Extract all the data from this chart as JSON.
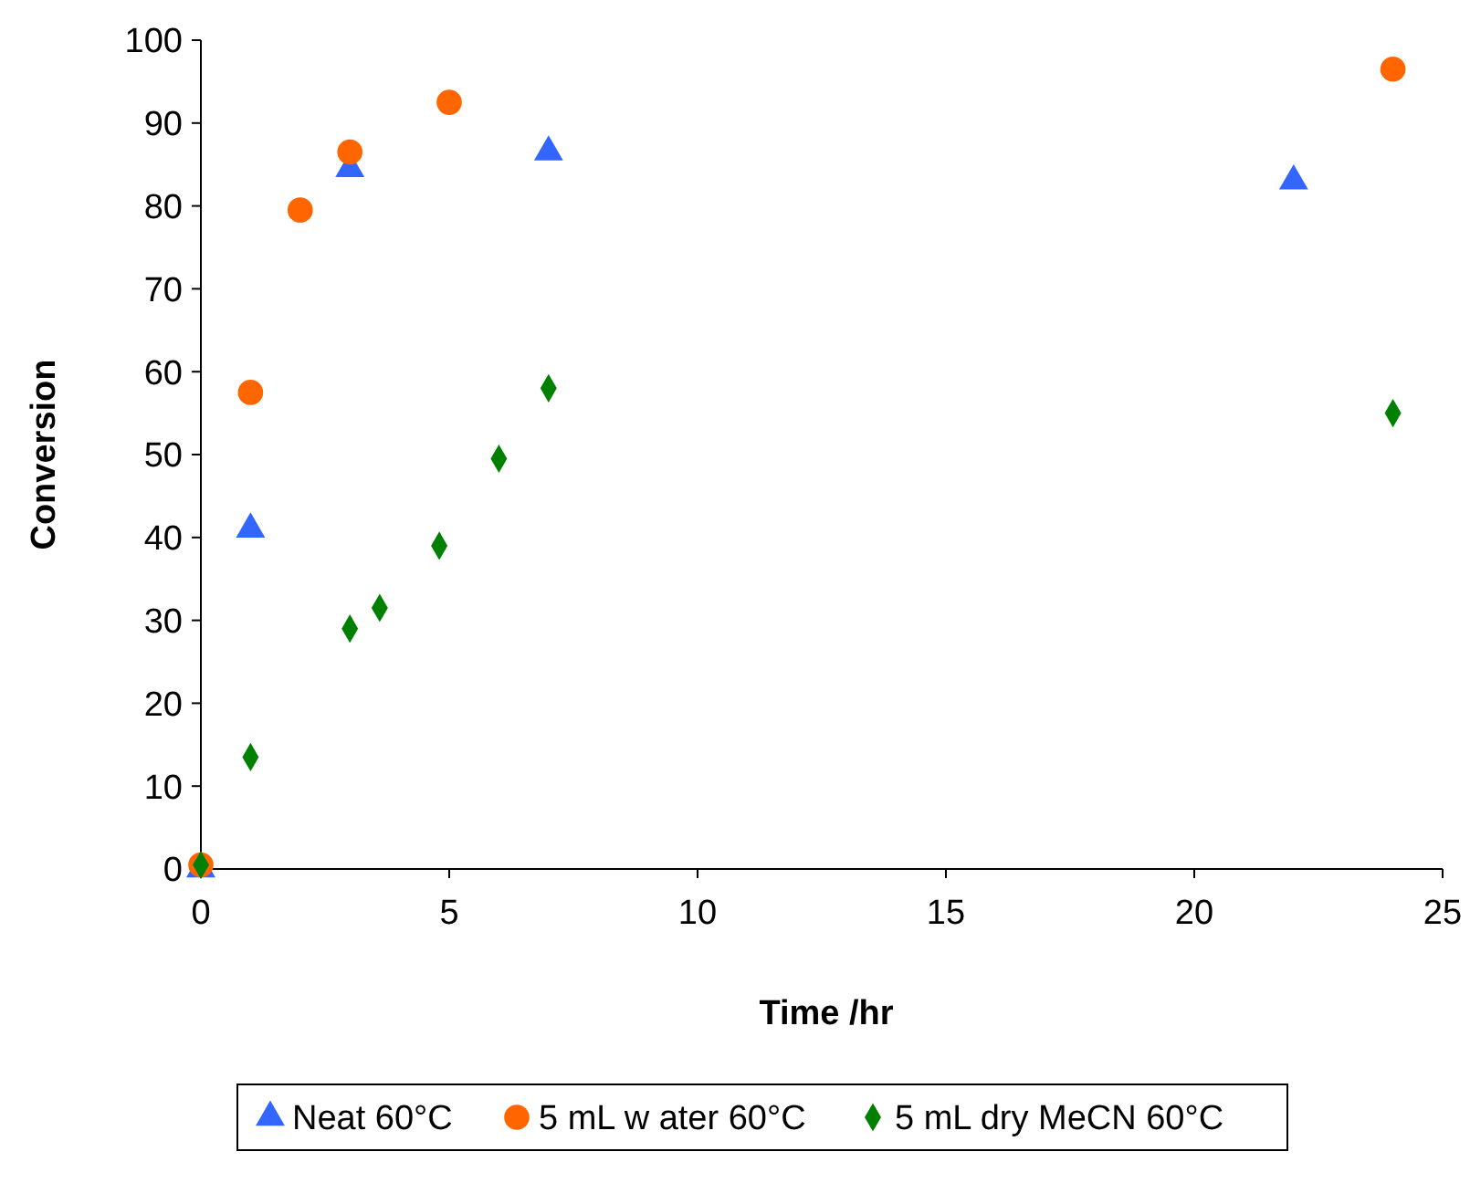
{
  "chart_data": {
    "type": "scatter",
    "xlabel": "Time /hr",
    "ylabel": "Conversion",
    "xlim": [
      0,
      25
    ],
    "ylim": [
      0,
      100
    ],
    "xticks": [
      0,
      5,
      10,
      15,
      20,
      25
    ],
    "yticks": [
      0,
      10,
      20,
      30,
      40,
      50,
      60,
      70,
      80,
      90,
      100
    ],
    "grid": false,
    "legend": "bottom",
    "series": [
      {
        "name": "Neat 60°C",
        "color": "#3366ff",
        "marker": "triangle",
        "x": [
          0,
          1,
          3,
          7,
          22
        ],
        "values": [
          0,
          41,
          84.5,
          86.5,
          83
        ]
      },
      {
        "name": "5 mL w ater 60°C",
        "color": "#ff6600",
        "marker": "circle",
        "x": [
          0,
          1,
          2,
          3,
          5,
          24
        ],
        "values": [
          0.5,
          57.5,
          79.5,
          86.5,
          92.5,
          96.5
        ]
      },
      {
        "name": "5 mL dry MeCN 60°C",
        "color": "#008000",
        "marker": "diamond",
        "x": [
          0,
          1,
          3,
          3.6,
          4.8,
          6,
          7,
          24
        ],
        "values": [
          0.5,
          13.5,
          29,
          31.5,
          39,
          49.5,
          58,
          55
        ]
      }
    ]
  }
}
